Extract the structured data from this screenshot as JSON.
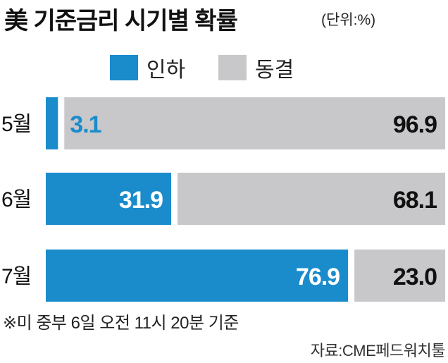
{
  "title": "美 기준금리 시기별 확률",
  "unit": "(단위:%)",
  "legend": [
    {
      "label": "인하",
      "color": "#1a8ccc"
    },
    {
      "label": "동결",
      "color": "#c8c8ca"
    }
  ],
  "chart_data": {
    "type": "bar",
    "orientation": "horizontal",
    "stacked": true,
    "categories": [
      "5월",
      "6월",
      "7월"
    ],
    "series": [
      {
        "name": "인하",
        "values": [
          3.1,
          31.9,
          76.9
        ],
        "color": "#1a8ccc"
      },
      {
        "name": "동결",
        "values": [
          96.9,
          68.1,
          23.0
        ],
        "color": "#c8c8ca"
      }
    ],
    "value_labels": [
      [
        "3.1",
        "96.9"
      ],
      [
        "31.9",
        "68.1"
      ],
      [
        "76.9",
        "23.0"
      ]
    ],
    "xlim": [
      0,
      100
    ],
    "grid": false,
    "legend_position": "top-left"
  },
  "footnote": "※미 중부 6일 오전 11시 20분 기준",
  "source": "자료:CME페드워치툴"
}
